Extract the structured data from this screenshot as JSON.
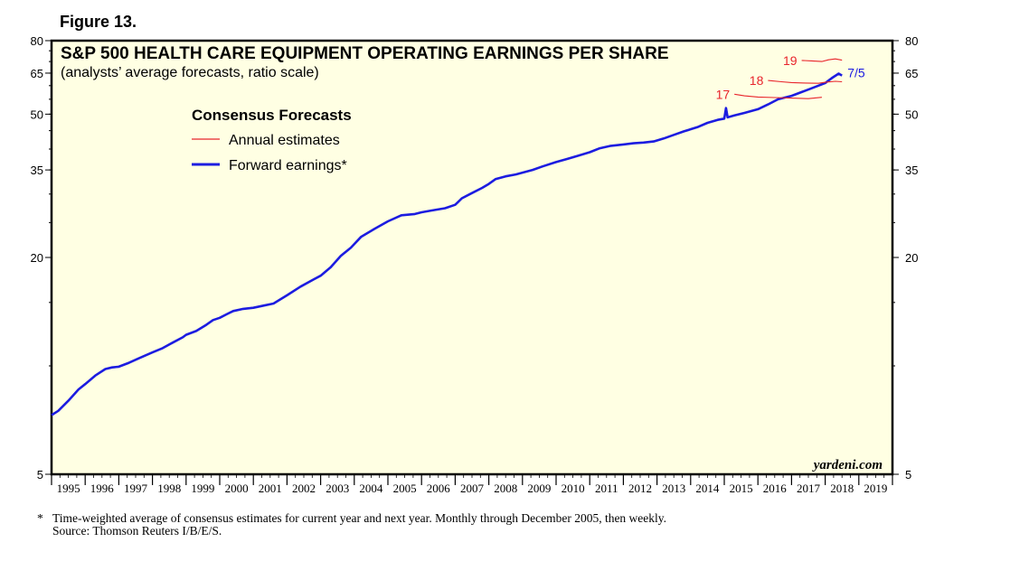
{
  "figure_label": "Figure 13.",
  "footnote": {
    "marker": "*",
    "line1": "Time-weighted average of consensus estimates for current year and next year. Monthly through December 2005, then weekly.",
    "line2": "Source: Thomson Reuters I/B/E/S."
  },
  "colors": {
    "plot_bg": "#ffffe3",
    "annual": "#e8242b",
    "forward": "#1c1ce0"
  },
  "chart_data": {
    "type": "line",
    "title": "S&P 500 HEALTH CARE EQUIPMENT OPERATING EARNINGS PER SHARE",
    "subtitle": "(analysts’ average forecasts, ratio scale)",
    "legend": {
      "title": "Consensus Forecasts",
      "annual": "Annual estimates",
      "forward": "Forward earnings*"
    },
    "credit": "yardeni.com",
    "x_range": [
      1995.0,
      2020.0
    ],
    "y_range": [
      5,
      80
    ],
    "y_scale": "log",
    "y_ticks": [
      5,
      20,
      35,
      50,
      65,
      80
    ],
    "y_tick_labels": [
      "5",
      "20",
      "35",
      "50",
      "65",
      "80"
    ],
    "x_tick_labels": [
      "1995",
      "1996",
      "1997",
      "1998",
      "1999",
      "2000",
      "2001",
      "2002",
      "2003",
      "2004",
      "2005",
      "2006",
      "2007",
      "2008",
      "2009",
      "2010",
      "2011",
      "2012",
      "2013",
      "2014",
      "2015",
      "2016",
      "2017",
      "2018",
      "2019"
    ],
    "forward_label": "7/5",
    "series": [
      {
        "name": "Forward earnings",
        "x": [
          1995.0,
          1995.2,
          1995.5,
          1995.8,
          1996.0,
          1996.3,
          1996.6,
          1996.8,
          1997.0,
          1997.3,
          1997.6,
          1998.0,
          1998.3,
          1998.6,
          1998.9,
          1999.0,
          1999.3,
          1999.6,
          1999.8,
          2000.0,
          2000.2,
          2000.4,
          2000.7,
          2001.0,
          2001.3,
          2001.6,
          2002.0,
          2002.4,
          2002.8,
          2003.0,
          2003.3,
          2003.6,
          2003.9,
          2004.2,
          2004.6,
          2005.0,
          2005.4,
          2005.8,
          2006.0,
          2006.3,
          2006.7,
          2007.0,
          2007.2,
          2007.5,
          2007.8,
          2008.0,
          2008.2,
          2008.5,
          2008.8,
          2009.0,
          2009.3,
          2009.6,
          2010.0,
          2010.3,
          2010.6,
          2011.0,
          2011.3,
          2011.6,
          2012.0,
          2012.3,
          2012.6,
          2012.9,
          2013.2,
          2013.5,
          2013.8,
          2014.2,
          2014.5,
          2014.8,
          2015.0,
          2015.05,
          2015.1,
          2015.3,
          2015.6,
          2016.0,
          2016.3,
          2016.6,
          2017.0,
          2017.3,
          2017.6,
          2018.0,
          2018.2,
          2018.4,
          2018.5
        ],
        "y": [
          7.3,
          7.5,
          8.0,
          8.6,
          8.9,
          9.4,
          9.8,
          9.9,
          9.95,
          10.2,
          10.5,
          10.9,
          11.2,
          11.6,
          12.0,
          12.2,
          12.5,
          13.0,
          13.4,
          13.6,
          13.9,
          14.2,
          14.4,
          14.5,
          14.7,
          14.9,
          15.7,
          16.6,
          17.4,
          17.8,
          18.8,
          20.2,
          21.3,
          22.8,
          24.0,
          25.2,
          26.2,
          26.4,
          26.7,
          27.0,
          27.4,
          28.0,
          29.2,
          30.2,
          31.2,
          32.0,
          33.0,
          33.6,
          34.0,
          34.4,
          35.0,
          35.8,
          36.8,
          37.5,
          38.2,
          39.2,
          40.2,
          40.8,
          41.2,
          41.5,
          41.7,
          42.0,
          42.8,
          43.8,
          44.8,
          46.0,
          47.3,
          48.2,
          48.6,
          52.0,
          49.0,
          49.6,
          50.4,
          51.6,
          53.2,
          55.0,
          56.2,
          57.6,
          59.0,
          61.0,
          63.0,
          64.8,
          64.0
        ]
      },
      {
        "name": "2017",
        "label": "17",
        "x": [
          2015.3,
          2015.6,
          2016.0,
          2016.5,
          2017.0,
          2017.5,
          2017.9
        ],
        "y": [
          56.8,
          56.2,
          55.8,
          55.6,
          55.4,
          55.2,
          55.7
        ]
      },
      {
        "name": "2018",
        "label": "18",
        "x": [
          2016.3,
          2016.7,
          2017.0,
          2017.4,
          2017.8,
          2018.0,
          2018.3,
          2018.5
        ],
        "y": [
          62.0,
          61.5,
          61.2,
          61.0,
          60.9,
          61.3,
          61.7,
          61.5
        ]
      },
      {
        "name": "2019",
        "label": "19",
        "x": [
          2017.3,
          2017.6,
          2017.9,
          2018.1,
          2018.3,
          2018.5
        ],
        "y": [
          70.5,
          70.3,
          70.0,
          70.8,
          71.2,
          70.6
        ]
      }
    ]
  }
}
